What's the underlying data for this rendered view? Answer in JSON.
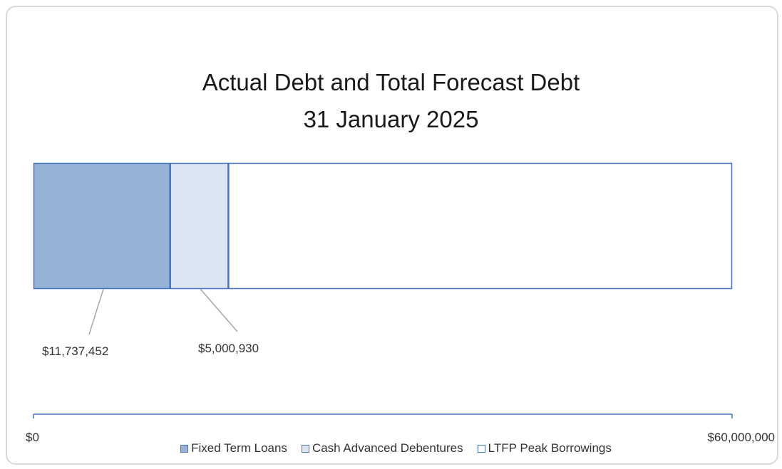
{
  "chart_data": {
    "type": "bar",
    "orientation": "horizontal",
    "stacked": true,
    "title": "Actual Debt and Total Forecast Debt",
    "subtitle": "31 January 2025",
    "series": [
      {
        "name": "Fixed Term Loans",
        "value": 11737452,
        "label": "$11,737,452",
        "color": "#95b3d7"
      },
      {
        "name": "Cash Advanced Debentures",
        "value": 5000930,
        "label": "$5,000,930",
        "color": "#dce6f2"
      },
      {
        "name": "LTFP Peak Borrowings",
        "value": 43261618,
        "label": "",
        "color": "#ffffff"
      }
    ],
    "xlim": [
      0,
      60000000
    ],
    "tick_labels": [
      "$0",
      "$60,000,000"
    ],
    "legend_position": "bottom",
    "grid": false,
    "border_color": "#4472c4"
  }
}
